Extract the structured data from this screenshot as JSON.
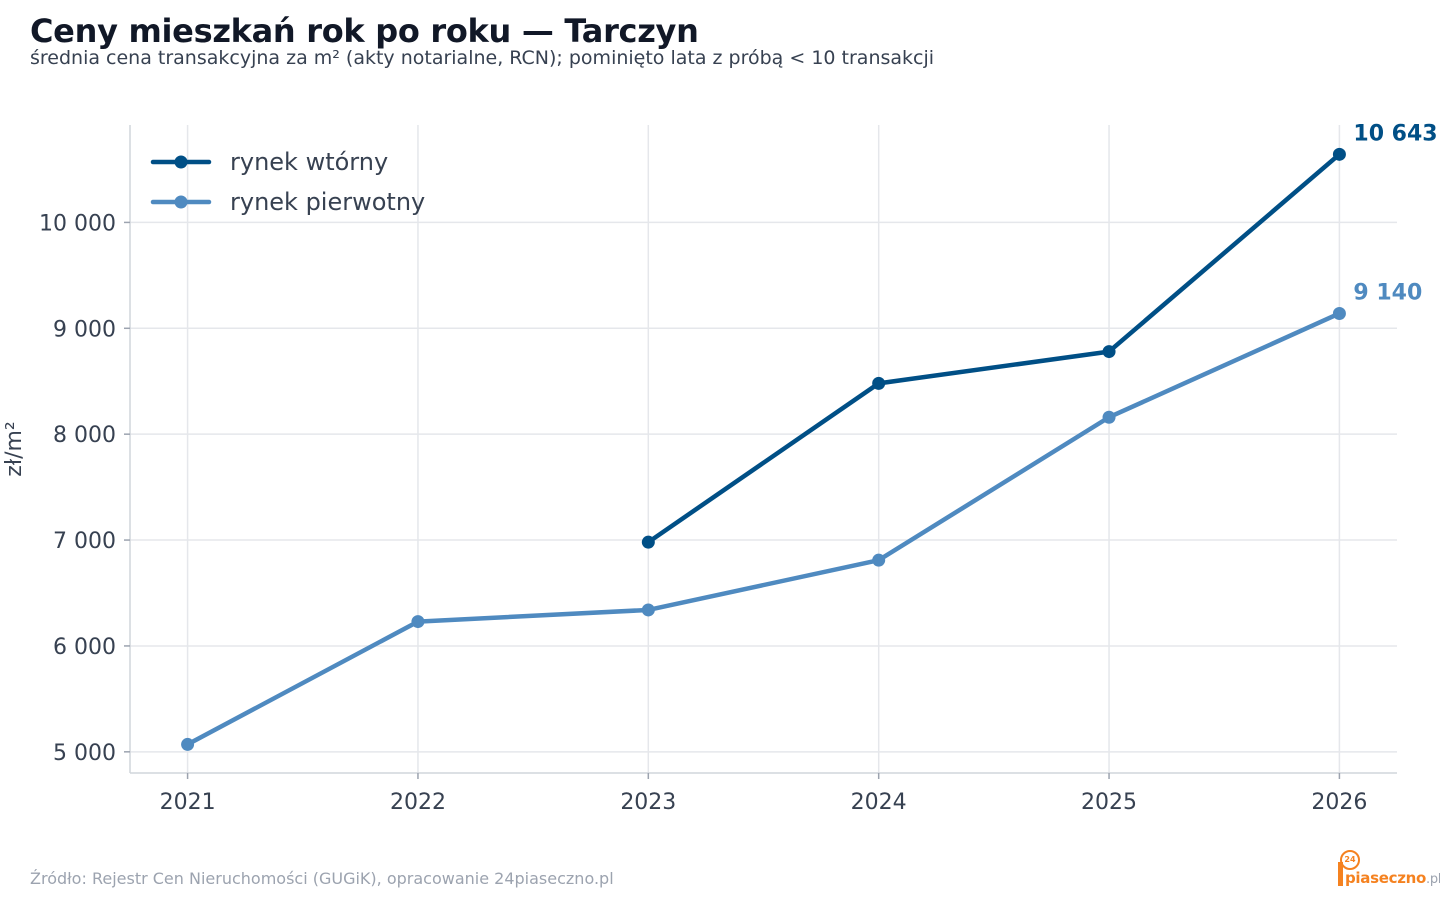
{
  "header": {
    "title": "Ceny mieszkań rok po roku — Tarczyn",
    "subtitle": "średnia cena transakcyjna za m² (akty notarialne, RCN); pominięto lata z próbą < 10 transakcji"
  },
  "footer": {
    "source": "Źródło: Rejestr Cen Nieruchomości (GUGiK), opracowanie 24piaseczno.pl"
  },
  "logo": {
    "badge": "24",
    "name": "piaseczno",
    "tld": ".pl"
  },
  "chart_data": {
    "type": "line",
    "title": "Ceny mieszkań rok po roku — Tarczyn",
    "subtitle": "średnia cena transakcyjna za m² (akty notarialne, RCN); pominięto lata z próbą < 10 transakcji",
    "xlabel": "",
    "ylabel": "zł/m²",
    "x": [
      2021,
      2022,
      2023,
      2024,
      2025,
      2026
    ],
    "x_tick_labels": [
      "2021",
      "2022",
      "2023",
      "2024",
      "2025",
      "2026"
    ],
    "y_ticks": [
      5000,
      6000,
      7000,
      8000,
      9000,
      10000
    ],
    "y_tick_labels": [
      "5 000",
      "6 000",
      "7 000",
      "8 000",
      "9 000",
      "10 000"
    ],
    "xlim": [
      2020.75,
      2026.25
    ],
    "ylim": [
      4800,
      10920
    ],
    "grid": true,
    "legend_position": "top-left",
    "series": [
      {
        "name": "rynek wtórny",
        "color": "#004f86",
        "values": [
          null,
          null,
          6980,
          8480,
          8780,
          10643
        ],
        "end_label": "10 643"
      },
      {
        "name": "rynek pierwotny",
        "color": "#4f8ac0",
        "values": [
          5070,
          6230,
          6340,
          6810,
          8160,
          9140
        ],
        "end_label": "9 140"
      }
    ]
  }
}
